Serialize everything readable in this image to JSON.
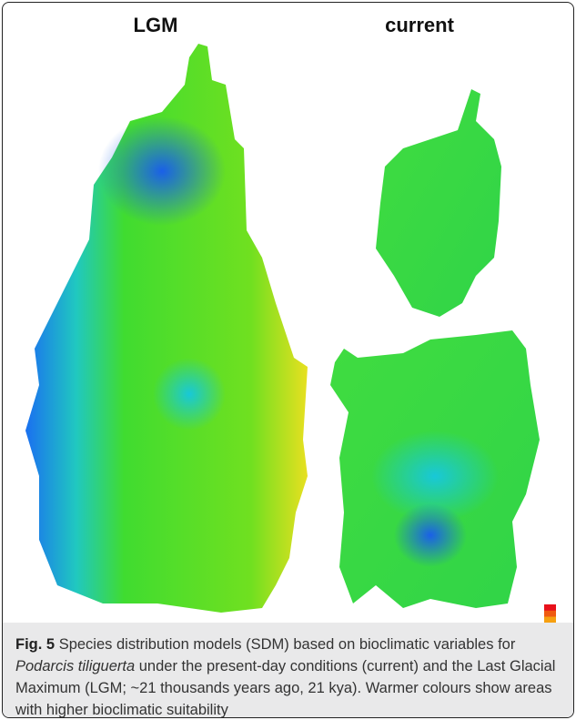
{
  "panels": [
    {
      "title": "LGM"
    },
    {
      "title": "current"
    }
  ],
  "colorbar": {
    "colors": [
      "#e8101a",
      "#f05a10",
      "#f6a010",
      "#f2e41a",
      "#c8ec1a",
      "#8ae61e",
      "#50e020",
      "#30d838",
      "#20d48a",
      "#18c8e0",
      "#1aa0f0",
      "#1a5cf0",
      "#1010e8"
    ]
  },
  "caption": {
    "label": "Fig. 5",
    "text_before": "Species distribution models (SDM) based on bioclimatic variables for ",
    "species": "Podarcis tiliguerta",
    "text_after": " under the present-day conditions (current) and the Last Glacial Maximum (LGM; ~21 thousands years ago, 21 kya). Warmer colours show areas with higher bioclimatic suitability"
  }
}
